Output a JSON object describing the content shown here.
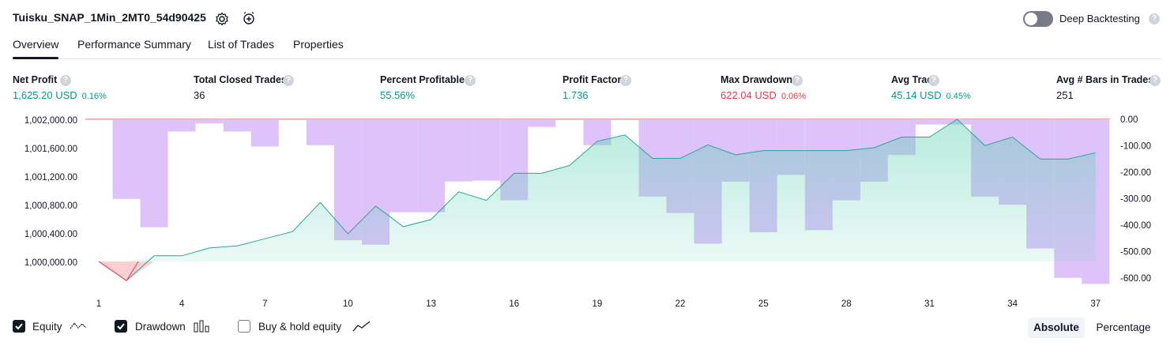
{
  "header": {
    "title": "Tuisku_SNAP_1Min_2MT0_54d90425",
    "settings_icon": "gear-icon",
    "alert_icon": "alarm-clock-plus-icon",
    "deep_backtesting_label": "Deep Backtesting",
    "deep_backtesting_on": false,
    "help_glyph": "?"
  },
  "tabs": [
    {
      "label": "Overview",
      "active": true
    },
    {
      "label": "Performance Summary",
      "active": false
    },
    {
      "label": "List of Trades",
      "active": false
    },
    {
      "label": "Properties",
      "active": false
    }
  ],
  "stats": [
    {
      "label": "Net Profit",
      "value": "1,625.20 USD",
      "pct": "0.16%",
      "color": "#089981"
    },
    {
      "label": "Total Closed Trades",
      "value": "36",
      "pct": "",
      "color": "#131722"
    },
    {
      "label": "Percent Profitable",
      "value": "55.56%",
      "pct": "",
      "color": "#089981"
    },
    {
      "label": "Profit Factor",
      "value": "1.736",
      "pct": "",
      "color": "#089981"
    },
    {
      "label": "Max Drawdown",
      "value": "622.04 USD",
      "pct": "0.06%",
      "color": "#f23645"
    },
    {
      "label": "Avg Trade",
      "value": "45.14 USD",
      "pct": "0.45%",
      "color": "#089981"
    },
    {
      "label": "Avg # Bars in Trades",
      "value": "251",
      "pct": "",
      "color": "#131722"
    }
  ],
  "chart_data": {
    "type": "area",
    "title": "",
    "x_ticks": [
      "1",
      "4",
      "7",
      "10",
      "13",
      "16",
      "19",
      "22",
      "25",
      "28",
      "31",
      "34",
      "37"
    ],
    "y_left_ticks": [
      "1,002,000.00",
      "1,001,600.00",
      "1,001,200.00",
      "1,000,800.00",
      "1,000,400.00",
      "1,000,000.00"
    ],
    "y_right_ticks": [
      "0.00",
      "-100.00",
      "-200.00",
      "-300.00",
      "-400.00",
      "-500.00",
      "-600.00"
    ],
    "ylim_left": [
      999700,
      1002000
    ],
    "ylim_right": [
      -622,
      0
    ],
    "baseline": 1000000,
    "equity": {
      "name": "Equity",
      "x": [
        1,
        2,
        3,
        4,
        5,
        6,
        7,
        8,
        9,
        10,
        11,
        12,
        13,
        14,
        15,
        16,
        17,
        18,
        19,
        20,
        21,
        22,
        23,
        24,
        25,
        26,
        27,
        28,
        29,
        30,
        31,
        32,
        33,
        34,
        35,
        36,
        37
      ],
      "values": [
        1000000,
        999730,
        1000080,
        1000080,
        1000190,
        1000220,
        1000320,
        1000420,
        1000830,
        1000390,
        1000780,
        1000490,
        1000590,
        1000980,
        1000860,
        1001240,
        1001240,
        1001350,
        1001690,
        1001780,
        1001450,
        1001450,
        1001640,
        1001500,
        1001560,
        1001560,
        1001560,
        1001560,
        1001600,
        1001750,
        1001750,
        1002000,
        1001630,
        1001750,
        1001440,
        1001440,
        1001530
      ],
      "color": "#089981"
    },
    "drawdown": {
      "name": "Drawdown",
      "x": [
        1,
        2,
        3,
        4,
        5,
        6,
        7,
        8,
        9,
        10,
        11,
        12,
        13,
        14,
        15,
        16,
        17,
        18,
        19,
        20,
        21,
        22,
        23,
        24,
        25,
        26,
        27,
        28,
        29,
        30,
        31,
        32,
        33,
        34,
        35,
        36,
        37
      ],
      "values": [
        -2,
        -301,
        -408,
        -46,
        -16,
        -46,
        -103,
        0,
        -98,
        -457,
        -474,
        -351,
        -351,
        -235,
        -232,
        -306,
        -29,
        0,
        -98,
        0,
        -292,
        -354,
        -470,
        -236,
        -427,
        -210,
        -419,
        -306,
        -236,
        -135,
        -20,
        -20,
        -292,
        -323,
        -488,
        -599,
        -622
      ],
      "color": "#b39ddb"
    }
  },
  "legend": {
    "equity": {
      "label": "Equity",
      "checked": true,
      "icon": "wave-icon"
    },
    "drawdown": {
      "label": "Drawdown",
      "checked": true,
      "icon": "bar-chart-icon"
    },
    "buy_hold": {
      "label": "Buy & hold equity",
      "checked": false,
      "icon": "trend-line-icon"
    }
  },
  "scale_toggle": {
    "absolute": "Absolute",
    "percentage": "Percentage",
    "selected": "Absolute"
  }
}
